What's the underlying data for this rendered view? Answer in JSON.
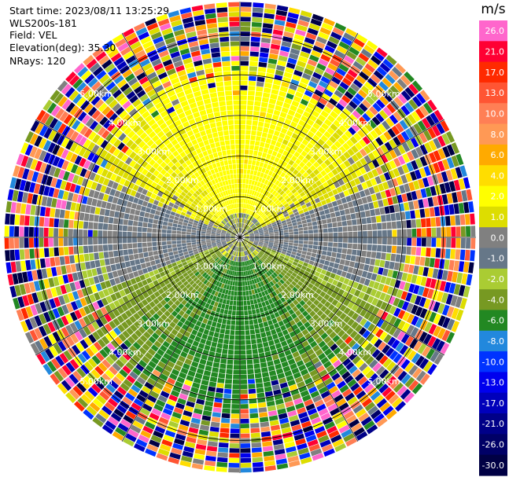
{
  "header": {
    "start_time": "Start time: 2023/08/11 13:25:29",
    "instrument": "WLS200s-181",
    "field": "Field: VEL",
    "elevation": "Elevation(deg): 35.30",
    "nrays": "NRays: 120"
  },
  "chart_data": {
    "type": "heatmap",
    "projection": "polar-ppi",
    "field": "VEL",
    "units": "m/s",
    "rays": 120,
    "ring_labels": [
      "1.00km",
      "2.00km",
      "3.00km",
      "4.00km",
      "5.00km"
    ],
    "ring_ranges_km": [
      1,
      2,
      3,
      4,
      5
    ],
    "max_range_km": 5.8,
    "colorbar": {
      "ticks": [
        26.0,
        21.0,
        17.0,
        13.0,
        10.0,
        8.0,
        6.0,
        4.0,
        2.0,
        1.0,
        0.0,
        -1.0,
        -2.0,
        -4.0,
        -6.0,
        -8.0,
        -10.0,
        -13.0,
        -17.0,
        -21.0,
        -26.0,
        -30.0
      ],
      "tick_labels": [
        "26.0",
        "21.0",
        "17.0",
        "13.0",
        "10.0",
        "8.0",
        "6.0",
        "4.0",
        "2.0",
        "1.0",
        "0.0",
        "-1.0",
        "-2.0",
        "-4.0",
        "-6.0",
        "-8.0",
        "-10.0",
        "-13.0",
        "-17.0",
        "-21.0",
        "-26.0",
        "-30.0"
      ],
      "colors": [
        "#ff66cc",
        "#ff0033",
        "#ff2a00",
        "#ff5533",
        "#ff7f55",
        "#ff9955",
        "#ffaa00",
        "#ffdd00",
        "#ffff00",
        "#dddd00",
        "#808080",
        "#667788",
        "#aacc33",
        "#779922",
        "#228822",
        "#2288dd",
        "#0033ff",
        "#0000ee",
        "#0000bb",
        "#000088",
        "#000066",
        "#000044"
      ]
    },
    "approx_velocity_pattern": {
      "northern_sector_m_s": [
        2,
        6
      ],
      "southern_sector_m_s": [
        -8,
        -2
      ],
      "zero_band": "west-east",
      "noisy_beyond_km": 3.5
    }
  }
}
